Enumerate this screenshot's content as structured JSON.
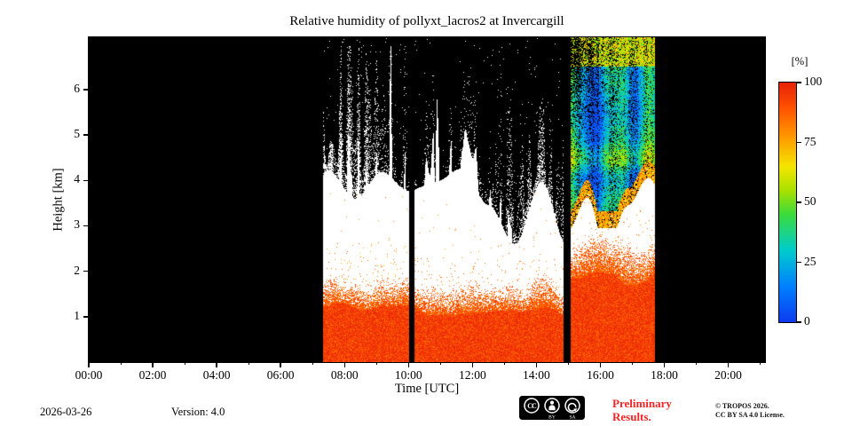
{
  "chart_data": {
    "type": "heatmap",
    "title": "Relative humidity of pollyxt_lacros2 at Invercargill",
    "xlabel": "Time [UTC]",
    "ylabel": "Height [km]",
    "colorbar_label": "[%]",
    "colorbar_ticks": [
      100,
      75,
      50,
      25,
      0
    ],
    "x_ticks": [
      "00:00",
      "02:00",
      "04:00",
      "06:00",
      "08:00",
      "10:00",
      "12:00",
      "14:00",
      "16:00",
      "18:00",
      "20:00"
    ],
    "x_tick_hours": [
      0,
      2,
      4,
      6,
      8,
      10,
      12,
      14,
      16,
      18,
      20
    ],
    "y_ticks": [
      1,
      2,
      3,
      4,
      5,
      6
    ],
    "xlim_hours": [
      0,
      21.15
    ],
    "ylim_km": [
      0,
      7.15
    ],
    "value_range_percent": [
      0,
      100
    ],
    "background_color": "#000000",
    "no_data_color": "#000000",
    "saturated_color": "#ffffff",
    "data_window_hours": [
      7.33,
      17.7
    ],
    "gaps_hours": [
      [
        10.03,
        10.2
      ],
      [
        14.86,
        15.08
      ]
    ],
    "layers": [
      {
        "name": "near-surface-moist-layer",
        "height_km": [
          0,
          1.5
        ],
        "rh_percent": [
          85,
          100
        ],
        "appearance": "solid red-orange"
      },
      {
        "name": "transition-speckle",
        "height_km": [
          1.2,
          2.1
        ],
        "rh_percent": [
          70,
          95
        ],
        "appearance": "orange speckle over white"
      },
      {
        "name": "saturated-white-region",
        "height_km": [
          1.5,
          4.3
        ],
        "rh_percent": [
          100,
          100
        ],
        "appearance": "white, noisy upper boundary with tall spike columns"
      },
      {
        "name": "no-data-above",
        "height_km": [
          4.0,
          7.15
        ],
        "rh_percent": null,
        "appearance": "black with sparse white speckle"
      }
    ],
    "feature": {
      "name": "mid-level-dry-layer",
      "time_hours": [
        15.08,
        17.7
      ],
      "height_km": [
        3.0,
        7.15
      ],
      "rh_percent": [
        5,
        80
      ],
      "appearance": "speckled blue-green-yellow patch with yellow-orange rim, black-speckled upper-left corner"
    },
    "colormap_stops": [
      {
        "v": 0.0,
        "color": "#0d3cf0"
      },
      {
        "v": 0.15,
        "color": "#0082ff"
      },
      {
        "v": 0.3,
        "color": "#00cdcd"
      },
      {
        "v": 0.45,
        "color": "#3cdc3c"
      },
      {
        "v": 0.55,
        "color": "#aae100"
      },
      {
        "v": 0.65,
        "color": "#f5e600"
      },
      {
        "v": 0.78,
        "color": "#ff9600"
      },
      {
        "v": 0.9,
        "color": "#ff5000"
      },
      {
        "v": 1.0,
        "color": "#e8230a"
      }
    ]
  },
  "footer": {
    "date": "2026-03-26",
    "version": "Version: 4.0",
    "preliminary": [
      "Preliminary",
      "Results."
    ],
    "copyright": [
      "© TROPOS 2026.",
      "CC BY SA 4.0 License."
    ],
    "license_badge": {
      "cc_text": "CC",
      "labels": [
        "BY",
        "SA"
      ]
    }
  }
}
